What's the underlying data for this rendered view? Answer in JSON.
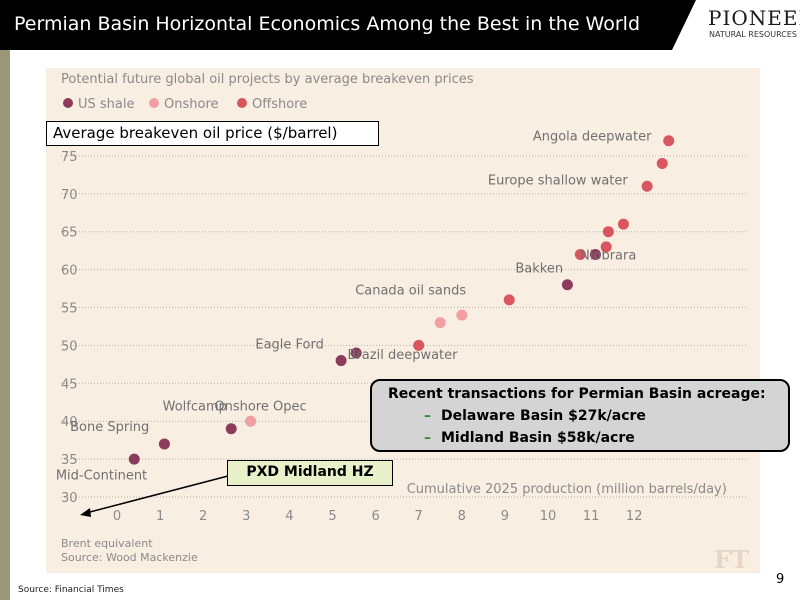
{
  "header": {
    "title": "Permian Basin Horizontal Economics Among the Best in the World",
    "logo_main": "PIONEER",
    "logo_sub": "NATURAL RESOURCES"
  },
  "callouts": {
    "ylabel": "Average breakeven oil price ($/barrel)",
    "pxd": "PXD Midland HZ",
    "transactions": {
      "title": "Recent transactions for Permian Basin acreage:",
      "items": [
        "Delaware Basin $27k/acre",
        "Midland Basin $58k/acre"
      ],
      "bullet": "–"
    }
  },
  "footer": {
    "source": "Source: Financial Times",
    "page": "9"
  },
  "chart_data": {
    "type": "scatter",
    "title": "Potential future global oil projects by average breakeven prices",
    "xlabel": "Cumulative 2025 production (million barrels/day)",
    "ylabel": "Average breakeven oil price ($/barrel)",
    "xlim": [
      -0.6,
      13.3
    ],
    "ylim": [
      30,
      75
    ],
    "x_ticks": [
      0,
      1,
      2,
      3,
      4,
      5,
      6,
      7,
      8,
      9,
      10,
      11,
      12
    ],
    "y_ticks": [
      30,
      35,
      40,
      45,
      50,
      55,
      60,
      65,
      70,
      75
    ],
    "grid": "horizontal dotted",
    "legend_position": "top-left",
    "legend": [
      {
        "name": "US shale",
        "color": "#8c3b5c"
      },
      {
        "name": "Onshore",
        "color": "#f0a0a0"
      },
      {
        "name": "Offshore",
        "color": "#d95560"
      }
    ],
    "series": [
      {
        "name": "US shale",
        "color": "#8c3b5c",
        "points": [
          [
            0.4,
            35
          ],
          [
            1.1,
            37
          ],
          [
            2.65,
            39
          ],
          [
            5.2,
            48
          ],
          [
            5.55,
            49
          ],
          [
            10.45,
            58
          ],
          [
            11.1,
            62
          ]
        ]
      },
      {
        "name": "Onshore",
        "color": "#f0a0a0",
        "points": [
          [
            3.1,
            40
          ],
          [
            7.5,
            53
          ],
          [
            8.0,
            54
          ]
        ]
      },
      {
        "name": "Offshore",
        "color": "#d95560",
        "points": [
          [
            7.0,
            50
          ],
          [
            9.1,
            56
          ],
          [
            10.75,
            62
          ],
          [
            11.35,
            63
          ],
          [
            11.4,
            65
          ],
          [
            11.75,
            66
          ],
          [
            12.3,
            71
          ],
          [
            12.65,
            74
          ],
          [
            12.8,
            77
          ]
        ]
      }
    ],
    "annotations": [
      {
        "text": "Angola deepwater",
        "x": 12.4,
        "y": 77
      },
      {
        "text": "Europe shallow water",
        "x": 11.85,
        "y": 71.2
      },
      {
        "text": "Niobrara",
        "x": 12.05,
        "y": 61.3
      },
      {
        "text": "Bakken",
        "x": 10.35,
        "y": 59.6
      },
      {
        "text": "Canada oil sands",
        "x": 8.1,
        "y": 56.7
      },
      {
        "text": "Brazil deepwater",
        "x": 7.9,
        "y": 48.2
      },
      {
        "text": "Eagle Ford",
        "x": 4.8,
        "y": 49.6
      },
      {
        "text": "Onshore Opec",
        "x": 4.4,
        "y": 41.4
      },
      {
        "text": "Wolfcamp",
        "x": 2.55,
        "y": 41.4
      },
      {
        "text": "Bone Spring",
        "x": 0.75,
        "y": 38.7
      },
      {
        "text": "Mid-Continent",
        "x": 0.7,
        "y": 32.3
      }
    ],
    "notes": [
      "Brent equivalent",
      "Source: Wood Mackenzie"
    ],
    "watermark": "FT"
  }
}
